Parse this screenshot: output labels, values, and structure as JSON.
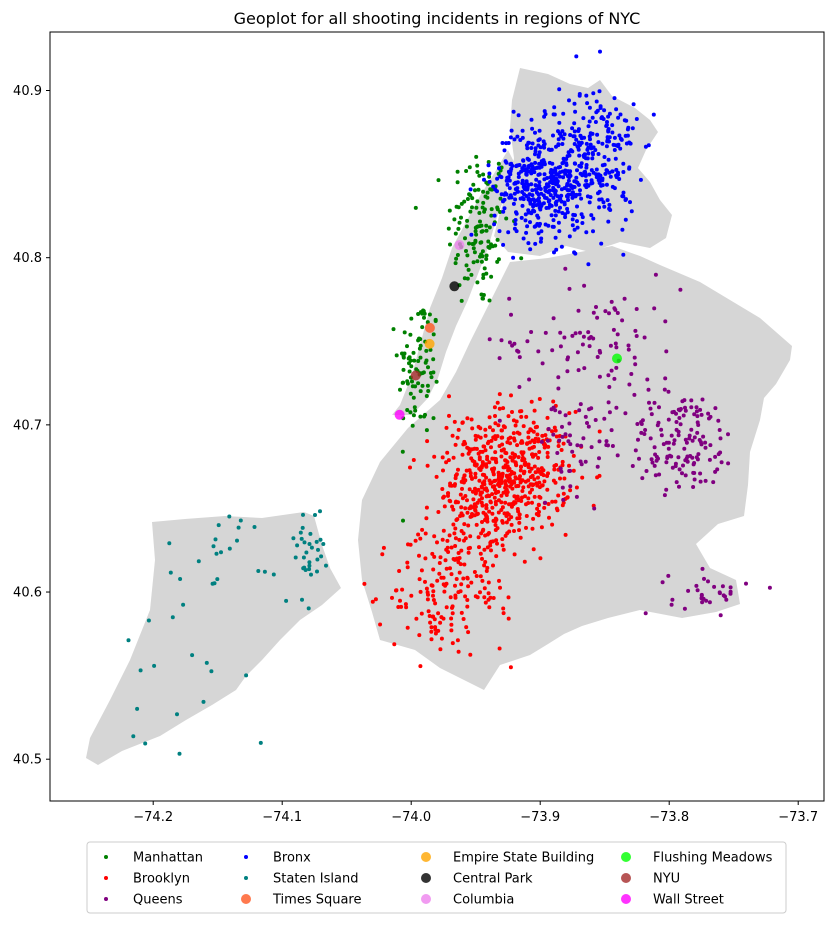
{
  "chart_data": {
    "type": "scatter",
    "title": "Geoplot for all shooting incidents in regions of NYC",
    "xlabel": "",
    "ylabel": "",
    "xlim": [
      -74.28,
      -73.68
    ],
    "ylim": [
      40.475,
      40.935
    ],
    "xticks": [
      -74.2,
      -74.1,
      -74.0,
      -73.9,
      -73.8,
      -73.7
    ],
    "xtick_labels": [
      "−74.2",
      "−74.1",
      "−74.0",
      "−73.9",
      "−73.8",
      "−73.7"
    ],
    "yticks": [
      40.5,
      40.6,
      40.7,
      40.8,
      40.9
    ],
    "ytick_labels": [
      "40.5",
      "40.6",
      "40.7",
      "40.8",
      "40.9"
    ],
    "grid": false,
    "legend_position": "bottom-center",
    "legend_columns": 4,
    "basemap_color": "#d6d6d6",
    "series": [
      {
        "name": "Manhattan",
        "color": "#008000",
        "kind": "point",
        "count": 220,
        "clusters": [
          {
            "x": -73.948,
            "y": 40.818,
            "sx": 0.012,
            "sy": 0.025,
            "w": 0.6
          },
          {
            "x": -73.994,
            "y": 40.735,
            "sx": 0.008,
            "sy": 0.022,
            "w": 0.4
          }
        ]
      },
      {
        "name": "Brooklyn",
        "color": "#ff0000",
        "kind": "point",
        "count": 780,
        "clusters": [
          {
            "x": -73.92,
            "y": 40.672,
            "sx": 0.022,
            "sy": 0.018,
            "w": 0.55
          },
          {
            "x": -73.95,
            "y": 40.645,
            "sx": 0.02,
            "sy": 0.03,
            "w": 0.3
          },
          {
            "x": -73.98,
            "y": 40.6,
            "sx": 0.018,
            "sy": 0.02,
            "w": 0.15
          }
        ]
      },
      {
        "name": "Queens",
        "color": "#800080",
        "kind": "point",
        "count": 320,
        "clusters": [
          {
            "x": -73.79,
            "y": 40.69,
            "sx": 0.022,
            "sy": 0.015,
            "w": 0.45
          },
          {
            "x": -73.86,
            "y": 40.75,
            "sx": 0.035,
            "sy": 0.02,
            "w": 0.3
          },
          {
            "x": -73.77,
            "y": 40.6,
            "sx": 0.015,
            "sy": 0.006,
            "w": 0.1
          },
          {
            "x": -73.87,
            "y": 40.69,
            "sx": 0.015,
            "sy": 0.015,
            "w": 0.15
          }
        ]
      },
      {
        "name": "Bronx",
        "color": "#0000ff",
        "kind": "point",
        "count": 650,
        "clusters": [
          {
            "x": -73.9,
            "y": 40.845,
            "sx": 0.018,
            "sy": 0.017,
            "w": 0.65
          },
          {
            "x": -73.855,
            "y": 40.86,
            "sx": 0.015,
            "sy": 0.022,
            "w": 0.35
          }
        ]
      },
      {
        "name": "Staten Island",
        "color": "#008080",
        "kind": "point",
        "count": 70,
        "clusters": [
          {
            "x": -74.08,
            "y": 40.625,
            "sx": 0.006,
            "sy": 0.012,
            "w": 0.45
          },
          {
            "x": -74.14,
            "y": 40.625,
            "sx": 0.025,
            "sy": 0.012,
            "w": 0.3
          },
          {
            "x": -74.17,
            "y": 40.56,
            "sx": 0.03,
            "sy": 0.03,
            "w": 0.25
          }
        ]
      },
      {
        "name": "Times Square",
        "color": "#ff5722",
        "kind": "landmark",
        "x": -73.9855,
        "y": 40.758
      },
      {
        "name": "Empire State Building",
        "color": "#ffa500",
        "kind": "landmark",
        "x": -73.9857,
        "y": 40.7484
      },
      {
        "name": "Central Park",
        "color": "#000000",
        "kind": "landmark",
        "x": -73.9665,
        "y": 40.7829
      },
      {
        "name": "Columbia",
        "color": "#ee82ee",
        "kind": "landmark",
        "x": -73.9626,
        "y": 40.8075
      },
      {
        "name": "Flushing Meadows",
        "color": "#00ff00",
        "kind": "landmark",
        "x": -73.8405,
        "y": 40.7397
      },
      {
        "name": "NYU",
        "color": "#a52a2a",
        "kind": "landmark",
        "x": -73.9965,
        "y": 40.7295
      },
      {
        "name": "Wall Street",
        "color": "#ff00ff",
        "kind": "landmark",
        "x": -74.009,
        "y": 40.706
      }
    ]
  }
}
